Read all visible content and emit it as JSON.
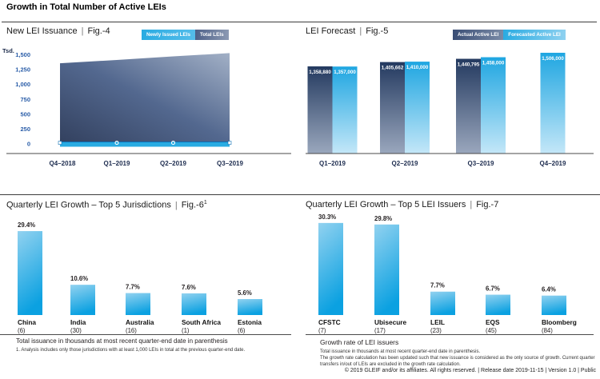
{
  "page": {
    "title": "Growth in Total Number of Active LEIs",
    "separator": "|",
    "footer": "© 2019 GLEIF and/or its affiliates. All rights reserved.  |  Release date 2019-11-15  |  Version 1.0  |  Public"
  },
  "colors": {
    "accent_blue": "#29ABE2",
    "band_edge": "#0C6FB5",
    "dark_navy": "#243A60",
    "dark_bar_bottom": "#9AA7BD",
    "forecast_top": "#1FA6E1",
    "forecast_bottom": "#C4E7F8",
    "growth_bar_top": "#92D2F0",
    "growth_bar_bottom": "#0BA1E1",
    "area_dark": "#33415F",
    "area_mid": "#53688F",
    "area_light": "#A2B0C6",
    "axis_line": "#4A4A4A",
    "ytick_text": "#2A5DA8",
    "xtick_text": "#1C2B4E"
  },
  "chart_data": [
    {
      "id": "fig4",
      "type": "area",
      "title": "New LEI Issuance",
      "fig": "Fig.-4",
      "y_unit": "Tsd.",
      "categories": [
        "Q4–2018",
        "Q1–2019",
        "Q2–2019",
        "Q3–2019"
      ],
      "series": [
        {
          "name": "Newly Issued LEIs",
          "values": [
            34,
            34,
            35,
            36
          ]
        },
        {
          "name": "Total LEIs",
          "values": [
            1355,
            1410,
            1470,
            1525
          ]
        }
      ],
      "ylim": [
        0,
        1500
      ],
      "yticks": [
        1500,
        1250,
        1000,
        750,
        500,
        250,
        0
      ],
      "ytick_labels": [
        "1,500",
        "1,250",
        "1,000",
        "750",
        "500",
        "250",
        "0"
      ],
      "grid": false,
      "legend_position": "top-right"
    },
    {
      "id": "fig5",
      "type": "bar",
      "title": "LEI Forecast",
      "fig": "Fig.-5",
      "categories": [
        "Q1–2019",
        "Q2–2019",
        "Q3–2019",
        "Q4–2019"
      ],
      "series": [
        {
          "name": "Actual Active LEI",
          "values": [
            1358880,
            1405662,
            1440795,
            null
          ],
          "labels": [
            "1,358,880",
            "1,405,662",
            "1,440,795",
            null
          ]
        },
        {
          "name": "Forecasted Active LEI",
          "values": [
            1357000,
            1410000,
            1458000,
            1506000
          ],
          "labels": [
            "1,357,000",
            "1,410,000",
            "1,458,000",
            "1,506,000"
          ]
        }
      ],
      "legend_position": "top-right"
    },
    {
      "id": "fig6",
      "type": "bar",
      "title": "Quarterly LEI Growth – Top 5 Jurisdictions",
      "fig": "Fig.-6",
      "fig_superscript": "1",
      "categories": [
        "China",
        "India",
        "Australia",
        "South Africa",
        "Estonia"
      ],
      "category_notes": [
        "(6)",
        "(30)",
        "(16)",
        "(1)",
        "(6)"
      ],
      "values": [
        29.4,
        10.6,
        7.7,
        7.6,
        5.6
      ],
      "value_labels": [
        "29.4%",
        "10.6%",
        "7.7%",
        "7.6%",
        "5.6%"
      ],
      "note": "Total issuance in thousands at most recent quarter-end date in parenthesis",
      "footnote": "1. Analysis includes only those jurisdictions with at least 1,000 LEIs in total at the previous quarter-end date."
    },
    {
      "id": "fig7",
      "type": "bar",
      "title": "Quarterly LEI Growth – Top 5 LEI Issuers",
      "fig": "Fig.-7",
      "categories": [
        "CFSTC",
        "Ubisecure",
        "LEIL",
        "EQS",
        "Bloomberg"
      ],
      "category_notes": [
        "(7)",
        "(17)",
        "(23)",
        "(45)",
        "(84)"
      ],
      "values": [
        30.3,
        29.8,
        7.7,
        6.7,
        6.4
      ],
      "value_labels": [
        "30.3%",
        "29.8%",
        "7.7%",
        "6.7%",
        "6.4%"
      ],
      "note_title": "Growth rate of LEI issuers",
      "note": "Total issuance in thousands at most recent quarter-end date in parenthesis.",
      "footnote": "The growth rate calculation has been updated such that new issuance is considered as the only source of growth. Current quarter transfers in/out of LEIs are excluded in the growth rate calculation."
    }
  ]
}
